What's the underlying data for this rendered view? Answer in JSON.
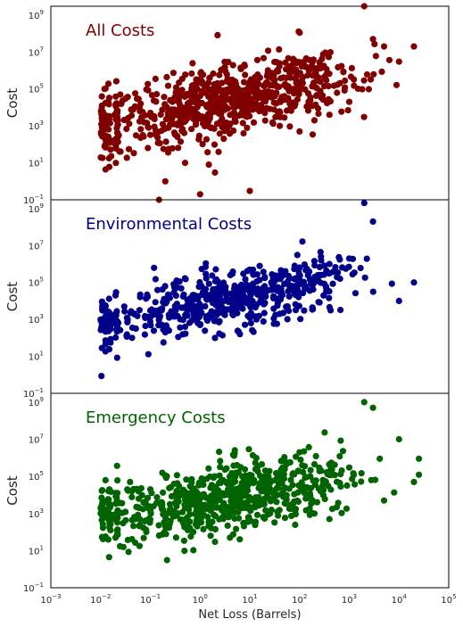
{
  "chart_data": {
    "type": "scatter",
    "x_axis": {
      "label": "Net Loss (Barrels)",
      "scale": "log",
      "lim": [
        0.001,
        100000
      ],
      "tick_exponents": [
        -3,
        -2,
        -1,
        0,
        1,
        2,
        3,
        4,
        5
      ]
    },
    "y_axis": {
      "label": "Cost",
      "scale": "log",
      "lim": [
        0.1,
        3000000000
      ],
      "tick_exponents": [
        -1,
        1,
        3,
        5,
        7,
        9
      ]
    },
    "panels": [
      {
        "title": "All Costs",
        "color": "#800000",
        "n_points": 800,
        "points": [
          [
            0.012,
            80
          ],
          [
            0.012,
            100000
          ],
          [
            0.02,
            100
          ],
          [
            0.025,
            50000
          ],
          [
            0.15,
            0.1
          ],
          [
            0.2,
            1
          ],
          [
            0.5,
            10
          ],
          [
            1.0,
            0.2
          ],
          [
            1.5,
            8
          ],
          [
            2,
            3
          ],
          [
            3,
            200
          ],
          [
            5,
            10000
          ],
          [
            10,
            0.3
          ],
          [
            10,
            10000
          ],
          [
            20,
            5000
          ],
          [
            40,
            1000
          ],
          [
            100,
            500
          ],
          [
            200,
            2000
          ],
          [
            400,
            4000
          ],
          [
            1000,
            20000
          ],
          [
            2000,
            3000000000
          ],
          [
            3000,
            50000000
          ],
          [
            5000,
            20000000
          ],
          [
            10000,
            3000000
          ],
          [
            20000,
            20000000
          ]
        ]
      },
      {
        "title": "Environmental Costs",
        "color": "#00008B",
        "n_points": 600,
        "points": [
          [
            0.01,
            1000
          ],
          [
            0.02,
            20000
          ],
          [
            0.03,
            5000
          ],
          [
            0.1,
            3000
          ],
          [
            0.2,
            200
          ],
          [
            0.5,
            400
          ],
          [
            1.0,
            500
          ],
          [
            2,
            100
          ],
          [
            3,
            10000
          ],
          [
            10,
            500000
          ],
          [
            20,
            200000
          ],
          [
            40,
            2000
          ],
          [
            100,
            80000
          ],
          [
            200,
            100000
          ],
          [
            400,
            1000000
          ],
          [
            1000,
            2000000
          ],
          [
            2000,
            2000000000
          ],
          [
            3000,
            200000000
          ],
          [
            10000,
            10000
          ],
          [
            20000,
            100000
          ]
        ]
      },
      {
        "title": "Emergency Costs",
        "color": "#006400",
        "n_points": 700,
        "points": [
          [
            0.01,
            2000
          ],
          [
            0.015,
            20000
          ],
          [
            0.02,
            50
          ],
          [
            0.05,
            500
          ],
          [
            0.1,
            20000
          ],
          [
            0.2,
            200
          ],
          [
            0.5,
            2000
          ],
          [
            1.0,
            1000
          ],
          [
            2,
            30
          ],
          [
            4,
            50
          ],
          [
            10,
            5000
          ],
          [
            20,
            100000
          ],
          [
            40,
            50000
          ],
          [
            100,
            2000000
          ],
          [
            200,
            1000
          ],
          [
            400,
            500
          ],
          [
            1000,
            300000
          ],
          [
            2000,
            1000000000
          ],
          [
            3000,
            500000000
          ],
          [
            5000,
            5000
          ],
          [
            10000,
            10000000
          ],
          [
            20000,
            50000
          ]
        ]
      }
    ]
  }
}
